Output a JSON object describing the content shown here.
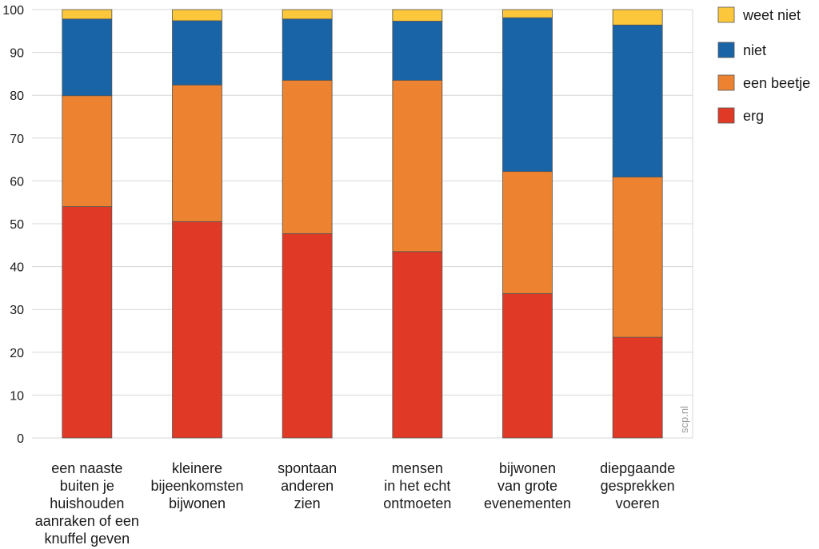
{
  "chart_data": {
    "type": "bar",
    "stacked": true,
    "categories": [
      [
        "een naaste",
        "buiten je",
        "huishouden",
        "aanraken of een",
        "knuffel geven"
      ],
      [
        "kleinere",
        "bijeenkomsten",
        "bijwonen"
      ],
      [
        "spontaan",
        "anderen",
        "zien"
      ],
      [
        "mensen",
        "in het echt",
        "ontmoeten"
      ],
      [
        "bijwonen",
        "van grote",
        "evenementen"
      ],
      [
        "diepgaande",
        "gesprekken",
        "voeren"
      ]
    ],
    "series": [
      {
        "name": "erg",
        "color": "#e03a27",
        "values": [
          54,
          50.5,
          47.7,
          43.5,
          33.7,
          23.5
        ]
      },
      {
        "name": "een beetje",
        "color": "#ed8331",
        "values": [
          25.9,
          31.9,
          35.8,
          40.0,
          28.5,
          37.4
        ]
      },
      {
        "name": "niet",
        "color": "#1864a6",
        "values": [
          17.9,
          15.0,
          14.3,
          13.8,
          35.9,
          35.5
        ]
      },
      {
        "name": "weet niet",
        "color": "#fcc73a",
        "values": [
          2.2,
          2.6,
          2.2,
          2.7,
          1.9,
          3.6
        ]
      }
    ],
    "legend_order": [
      "weet niet",
      "niet",
      "een beetje",
      "erg"
    ],
    "legend_position": "right",
    "ylim": [
      0,
      100
    ],
    "yticks": [
      0,
      10,
      20,
      30,
      40,
      50,
      60,
      70,
      80,
      90,
      100
    ],
    "grid": true,
    "xlabel": "",
    "ylabel": "",
    "title": ""
  },
  "watermark": "scp.nl"
}
